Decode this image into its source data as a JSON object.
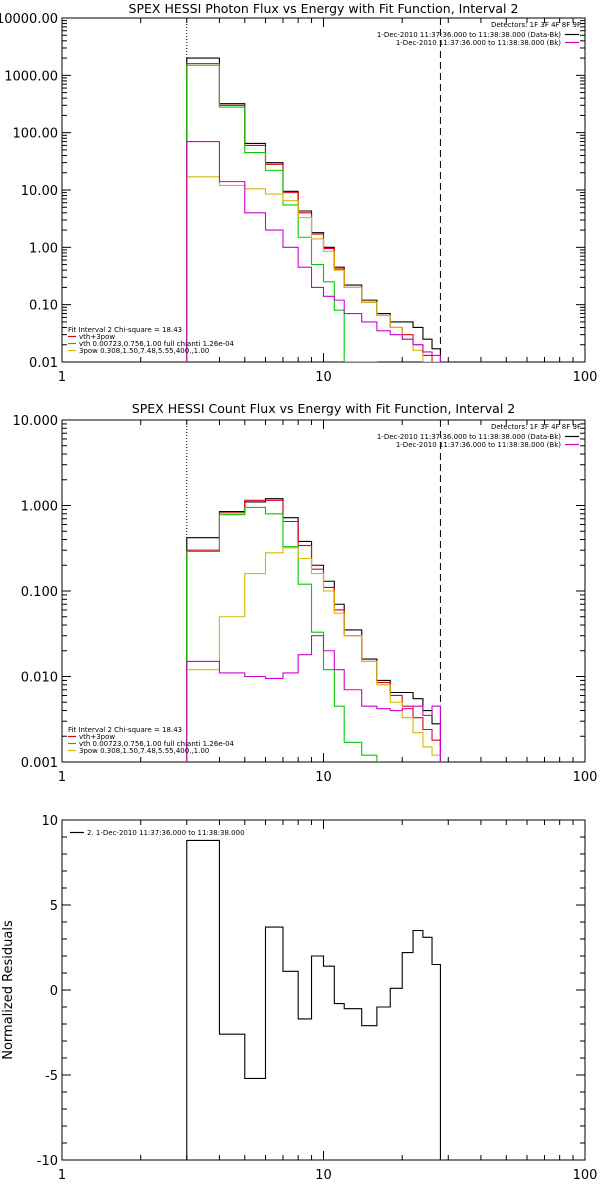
{
  "colors": {
    "black": "#000000",
    "red": "#e0001a",
    "green": "#00cc00",
    "magenta": "#d000d0",
    "yellow": "#d8b800"
  },
  "chart_data": [
    {
      "type": "line",
      "title": "SPEX HESSI Photon Flux vs Energy with Fit Function, Interval 2",
      "xlabel": "",
      "ylabel": "",
      "x_scale": "log",
      "y_scale": "log",
      "xlim": [
        1,
        100
      ],
      "ylim": [
        0.01,
        10000
      ],
      "x_ticks": [
        "1",
        "10",
        "100"
      ],
      "y_ticks": [
        "0.01",
        "0.10",
        "1.00",
        "10.00",
        "100.00",
        "1000.00",
        "10000.00"
      ],
      "y_tick_values": [
        0.01,
        0.1,
        1,
        10,
        100,
        1000,
        10000
      ],
      "edges": [
        3,
        4,
        5,
        6,
        7,
        8,
        9,
        10,
        11,
        12,
        14,
        16,
        18,
        20,
        22,
        24,
        26,
        28
      ],
      "vlines": [
        {
          "x": 3,
          "style": "dotted"
        },
        {
          "x": 28,
          "style": "dashed"
        }
      ],
      "detectors_text": "Detectors: 1F 3F 4F 8F 9F",
      "legend_top": [
        {
          "text": "1-Dec-2010 11:37:36.000 to 11:38:38.000 (Data-Bk)",
          "color": "black"
        },
        {
          "text": "1-Dec-2010 11:37:36.000 to 11:38:38.000 (Bk)",
          "color": "magenta"
        }
      ],
      "legend_bottom": [
        {
          "text": "Fit Interval 2   Chi-square = 18.43",
          "color": null
        },
        {
          "text": "vth+3pow",
          "color": "red"
        },
        {
          "text": "vth 0.00723,0.756,1.00  full chianti 1.26e-04",
          "color": "green"
        },
        {
          "text": "3pow 0.308,1.50,7.48,5.55,400.,1.00",
          "color": "yellow"
        }
      ],
      "series": [
        {
          "name": "Data-Bk",
          "color": "black",
          "values": [
            2000,
            320,
            65,
            30,
            9.5,
            4.3,
            1.8,
            1.0,
            0.45,
            0.22,
            0.12,
            0.07,
            0.05,
            0.05,
            0.04,
            0.025,
            0.017
          ]
        },
        {
          "name": "vth+3pow",
          "color": "red",
          "values": [
            1600,
            300,
            60,
            28,
            9.0,
            4.0,
            1.7,
            0.95,
            0.42,
            0.2,
            0.11,
            0.065,
            0.04,
            0.03,
            0.02,
            0.013,
            0.009
          ]
        },
        {
          "name": "vth",
          "color": "green",
          "values": [
            1500,
            280,
            45,
            22,
            5.5,
            1.5,
            0.5,
            0.25,
            0.08,
            0.01,
            0.007
          ]
        },
        {
          "name": "3pow",
          "color": "yellow",
          "values": [
            17,
            12,
            10.5,
            8.5,
            6.5,
            3.3,
            1.4,
            0.85,
            0.4,
            0.2,
            0.11,
            0.065,
            0.04,
            0.025,
            0.016,
            0.01,
            0.007
          ]
        },
        {
          "name": "Bk",
          "color": "magenta",
          "values": [
            70,
            14,
            4.0,
            2.0,
            1.0,
            0.45,
            0.2,
            0.14,
            0.12,
            0.07,
            0.05,
            0.035,
            0.03,
            0.025,
            0.02,
            0.015,
            0.013
          ]
        }
      ]
    },
    {
      "type": "line",
      "title": "SPEX HESSI Count Flux vs Energy with Fit Function, Interval 2",
      "xlabel": "",
      "ylabel": "",
      "x_scale": "log",
      "y_scale": "log",
      "xlim": [
        1,
        100
      ],
      "ylim": [
        0.001,
        10
      ],
      "x_ticks": [
        "1",
        "10",
        "100"
      ],
      "y_ticks": [
        "0.001",
        "0.010",
        "0.100",
        "1.000",
        "10.000"
      ],
      "y_tick_values": [
        0.001,
        0.01,
        0.1,
        1,
        10
      ],
      "edges": [
        3,
        4,
        5,
        6,
        7,
        8,
        9,
        10,
        11,
        12,
        14,
        16,
        18,
        20,
        22,
        24,
        26,
        28
      ],
      "vlines": [
        {
          "x": 3,
          "style": "dotted"
        },
        {
          "x": 28,
          "style": "dashed"
        }
      ],
      "detectors_text": "Detectors: 1F 3F 4F 8F 9F",
      "legend_top": [
        {
          "text": "1-Dec-2010 11:37:36.000 to 11:38:38.000 (Data-Bk)",
          "color": "black"
        },
        {
          "text": "1-Dec-2010 11:37:36.000 to 11:38:38.000 (Bk)",
          "color": "magenta"
        }
      ],
      "legend_bottom": [
        {
          "text": "Fit Interval 2   Chi-square = 18.43",
          "color": null
        },
        {
          "text": "vth+3pow",
          "color": "red"
        },
        {
          "text": "vth 0.00723,0.756,1.00  full chianti 1.26e-04",
          "color": "green"
        },
        {
          "text": "3pow 0.308,1.50,7.48,5.55,400.,1.00",
          "color": "yellow"
        }
      ],
      "series": [
        {
          "name": "Data-Bk",
          "color": "black",
          "values": [
            0.42,
            0.85,
            1.1,
            1.2,
            0.72,
            0.38,
            0.2,
            0.13,
            0.07,
            0.035,
            0.016,
            0.009,
            0.0065,
            0.0065,
            0.0055,
            0.004,
            0.0028
          ]
        },
        {
          "name": "vth+3pow",
          "color": "red",
          "values": [
            0.3,
            0.82,
            1.15,
            1.15,
            0.65,
            0.34,
            0.18,
            0.11,
            0.06,
            0.03,
            0.015,
            0.0085,
            0.006,
            0.0045,
            0.0033,
            0.0024,
            0.0018
          ]
        },
        {
          "name": "vth",
          "color": "green",
          "values": [
            0.29,
            0.78,
            0.95,
            0.8,
            0.33,
            0.12,
            0.033,
            0.012,
            0.0045,
            0.0017,
            0.0012
          ]
        },
        {
          "name": "3pow",
          "color": "yellow",
          "values": [
            0.012,
            0.05,
            0.16,
            0.28,
            0.32,
            0.24,
            0.16,
            0.1,
            0.055,
            0.03,
            0.015,
            0.008,
            0.005,
            0.0033,
            0.0022,
            0.0015,
            0.0012
          ]
        },
        {
          "name": "Bk",
          "color": "magenta",
          "values": [
            0.015,
            0.011,
            0.01,
            0.0095,
            0.011,
            0.018,
            0.03,
            0.02,
            0.012,
            0.007,
            0.0045,
            0.0042,
            0.004,
            0.0042,
            0.0045,
            0.0035,
            0.0045
          ]
        }
      ]
    },
    {
      "type": "line",
      "title": "",
      "xlabel": "",
      "ylabel": "Normalized Residuals",
      "x_scale": "log",
      "y_scale": "linear",
      "xlim": [
        1,
        100
      ],
      "ylim": [
        -10,
        10
      ],
      "x_ticks": [
        "1",
        "10",
        "100"
      ],
      "y_ticks": [
        "-10",
        "-5",
        "0",
        "5",
        "10"
      ],
      "y_tick_values": [
        -10,
        -5,
        0,
        5,
        10
      ],
      "edges": [
        3,
        4,
        5,
        6,
        7,
        8,
        9,
        10,
        11,
        12,
        14,
        16,
        18,
        20,
        22,
        24,
        26,
        28
      ],
      "legend_top": [
        {
          "text": "2. 1-Dec-2010 11:37:36.000 to 11:38:38.000",
          "color": "black"
        }
      ],
      "series": [
        {
          "name": "2. 1-Dec-2010 11:37:36.000 to 11:38:38.000",
          "color": "black",
          "values": [
            8.8,
            -2.6,
            -5.2,
            3.7,
            1.1,
            -1.7,
            2.0,
            1.4,
            -0.8,
            -1.1,
            -2.1,
            -1.0,
            0.1,
            2.2,
            3.5,
            3.1,
            1.5
          ],
          "drop_to_floor": true
        }
      ]
    }
  ]
}
